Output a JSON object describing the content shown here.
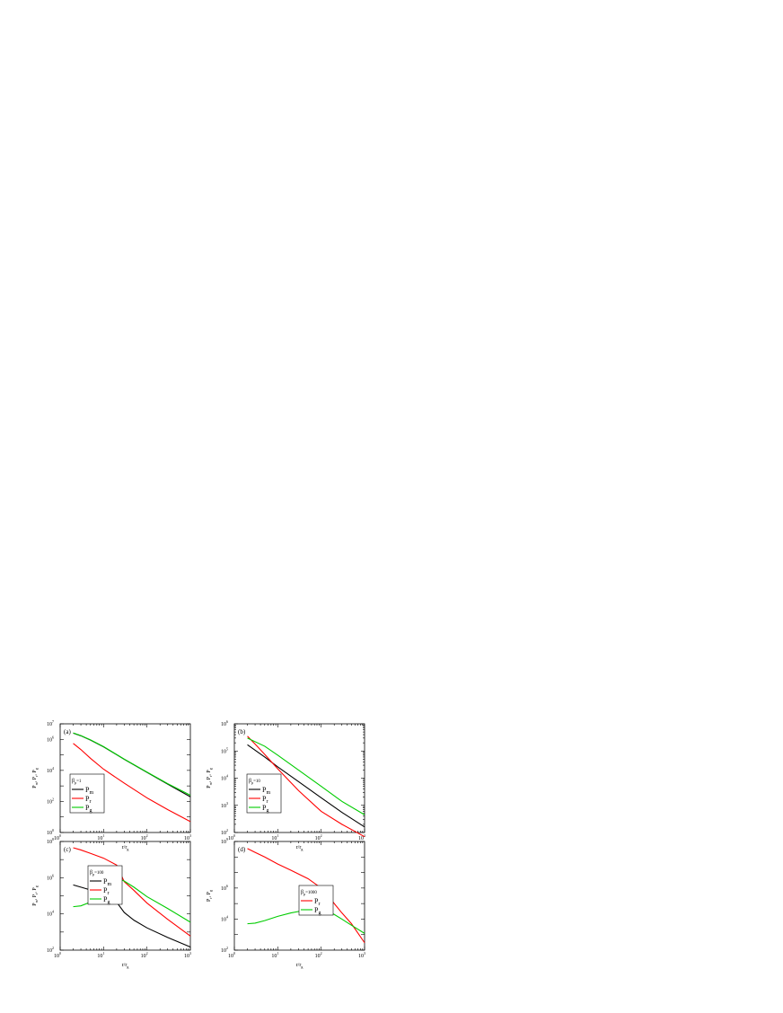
{
  "chart_data": [
    {
      "type": "line",
      "panel_label": "(a)",
      "xlabel": "r/r_g",
      "ylabel": "P_m, P_r, P_g",
      "xscale": "log",
      "yscale": "log",
      "xlim": [
        1,
        1000
      ],
      "ylim": [
        1,
        10000000
      ],
      "x_ticks": [
        1,
        10,
        100,
        1000
      ],
      "x_tick_exponents": [
        "0",
        "1",
        "2",
        "3"
      ],
      "y_ticks": [
        1,
        100,
        10000,
        1000000
      ],
      "y_tick_exponents": [
        "0",
        "2",
        "4",
        "6"
      ],
      "y_top_tick_exponent": "7",
      "legend_title": "β_p=1",
      "legend_position": "lower-left",
      "series": [
        {
          "name": "P_m",
          "color": "#000000",
          "x": [
            2,
            3,
            5,
            10,
            30,
            100,
            300,
            1000
          ],
          "y": [
            2500000,
            1700000,
            900000,
            330000,
            52000,
            7500,
            1300,
            200
          ]
        },
        {
          "name": "P_r",
          "color": "#ff0000",
          "x": [
            2,
            3,
            5,
            10,
            30,
            100,
            300,
            1000
          ],
          "y": [
            550000,
            220000,
            60000,
            12000,
            1500,
            170,
            30,
            5
          ]
        },
        {
          "name": "P_g",
          "color": "#00cc00",
          "x": [
            2,
            3,
            5,
            10,
            30,
            100,
            300,
            1000
          ],
          "y": [
            2600000,
            1750000,
            920000,
            340000,
            53000,
            7800,
            1400,
            250
          ]
        }
      ]
    },
    {
      "type": "line",
      "panel_label": "(b)",
      "xlabel": "r/r_g",
      "ylabel": "P_m, P_r, P_g",
      "xscale": "log",
      "yscale": "log",
      "xlim": [
        1,
        1000
      ],
      "ylim": [
        100,
        1000000
      ],
      "x_ticks": [
        1,
        10,
        100,
        1000
      ],
      "x_tick_exponents": [
        "0",
        "1",
        "2",
        "3"
      ],
      "y_ticks": [
        100,
        1000,
        10000,
        100000,
        1000000
      ],
      "y_tick_exponents": [
        "2",
        "3",
        "4",
        "5",
        "6"
      ],
      "legend_title": "β_p=10",
      "legend_position": "lower-left",
      "series": [
        {
          "name": "P_m",
          "color": "#000000",
          "x": [
            2,
            5,
            10,
            30,
            100,
            300,
            1000
          ],
          "y": [
            170000,
            60000,
            26000,
            7500,
            1900,
            550,
            160
          ]
        },
        {
          "name": "P_r",
          "color": "#ff0000",
          "x": [
            2,
            3,
            5,
            10,
            30,
            100,
            300,
            1000
          ],
          "y": [
            350000,
            180000,
            75000,
            22000,
            3500,
            600,
            200,
            70
          ]
        },
        {
          "name": "P_g",
          "color": "#00cc00",
          "x": [
            2,
            5,
            10,
            30,
            100,
            300,
            1000
          ],
          "y": [
            300000,
            150000,
            70000,
            20000,
            5000,
            1400,
            450
          ]
        }
      ]
    },
    {
      "type": "line",
      "panel_label": "(c)",
      "xlabel": "r/r_g",
      "ylabel": "P_m, P_r, P_g",
      "xscale": "log",
      "yscale": "log",
      "xlim": [
        1,
        1000
      ],
      "ylim": [
        100,
        100000000
      ],
      "x_ticks": [
        1,
        10,
        100,
        1000
      ],
      "x_tick_exponents": [
        "0",
        "1",
        "2",
        "3"
      ],
      "y_ticks": [
        100,
        10000,
        1000000,
        100000000
      ],
      "y_tick_exponents": [
        "2",
        "4",
        "6",
        "8"
      ],
      "legend_title": "β_p=100",
      "legend_position": "lower-center",
      "series": [
        {
          "name": "P_m",
          "color": "#000000",
          "x": [
            2,
            5,
            10,
            20,
            30,
            50,
            100,
            300,
            1000
          ],
          "y": [
            400000,
            210000,
            110000,
            45000,
            12000,
            4500,
            1700,
            500,
            150
          ]
        },
        {
          "name": "P_r",
          "color": "#ff0000",
          "x": [
            2,
            3,
            5,
            10,
            20,
            25,
            30,
            50,
            100,
            300,
            1000
          ],
          "y": [
            45000000,
            34000000,
            22000000,
            12000000,
            5000000,
            1500000,
            600000,
            200000,
            40000,
            5000,
            600
          ]
        },
        {
          "name": "P_g",
          "color": "#00cc00",
          "x": [
            2,
            3,
            5,
            10,
            15,
            20,
            25,
            30,
            50,
            100,
            300,
            1000
          ],
          "y": [
            25000,
            28000,
            45000,
            120000,
            300000,
            600000,
            800000,
            650000,
            300000,
            90000,
            20000,
            3500
          ]
        }
      ]
    },
    {
      "type": "line",
      "panel_label": "(d)",
      "xlabel": "r/r_g",
      "ylabel": "P_r, P_g",
      "xscale": "log",
      "yscale": "log",
      "xlim": [
        1,
        1000
      ],
      "ylim": [
        100,
        1000000000
      ],
      "x_ticks": [
        1,
        10,
        100,
        1000
      ],
      "x_tick_exponents": [
        "0",
        "1",
        "2",
        "3"
      ],
      "y_ticks": [
        100,
        1000000,
        1000000000
      ],
      "y_tick_exponents": [
        "2",
        "6",
        "9"
      ],
      "y_mid_tick_exponent": "4",
      "legend_title": "β_p=1000",
      "legend_position": "lower-right",
      "series": [
        {
          "name": "P_r",
          "color": "#ff0000",
          "x": [
            2,
            3,
            5,
            10,
            20,
            50,
            100,
            200,
            300,
            500,
            1000
          ],
          "y": [
            350000000,
            200000000,
            100000000,
            35000000,
            14000000,
            4000000,
            1000000,
            100000,
            25000,
            5000,
            300
          ]
        },
        {
          "name": "P_g",
          "color": "#00cc00",
          "x": [
            2,
            3,
            5,
            10,
            20,
            50,
            80,
            100,
            150,
            200,
            300,
            500,
            1000
          ],
          "y": [
            5000,
            5500,
            8000,
            15000,
            25000,
            40000,
            42000,
            40000,
            30000,
            20000,
            10000,
            4000,
            1200
          ]
        }
      ]
    }
  ]
}
